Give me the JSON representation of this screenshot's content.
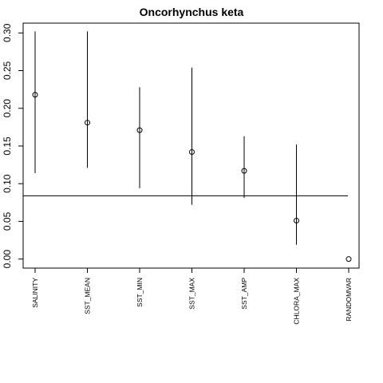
{
  "chart_data": {
    "type": "scatter",
    "title": "Oncorhynchus keta",
    "xlabel": "",
    "ylabel": "",
    "categories": [
      "SALINITY",
      "SST_MEAN",
      "SST_MIN",
      "SST_MAX",
      "SST_AMP",
      "CHLORA_MAX",
      "RANDOMVAR"
    ],
    "series": [
      {
        "values": [
          0.218,
          0.181,
          0.171,
          0.142,
          0.117,
          0.051,
          0.0
        ],
        "lower": [
          0.114,
          0.121,
          0.094,
          0.072,
          0.081,
          0.019,
          0.0
        ],
        "upper": [
          0.302,
          0.302,
          0.228,
          0.254,
          0.163,
          0.152,
          0.0
        ]
      }
    ],
    "reference_line_y": 0.084,
    "ylim": [
      -0.012,
      0.313
    ],
    "yticks": [
      0.0,
      0.05,
      0.1,
      0.15,
      0.2,
      0.25,
      0.3
    ],
    "ytick_labels": [
      "0.00",
      "0.05",
      "0.10",
      "0.15",
      "0.20",
      "0.25",
      "0.30"
    ],
    "grid": false,
    "legend": "none"
  }
}
